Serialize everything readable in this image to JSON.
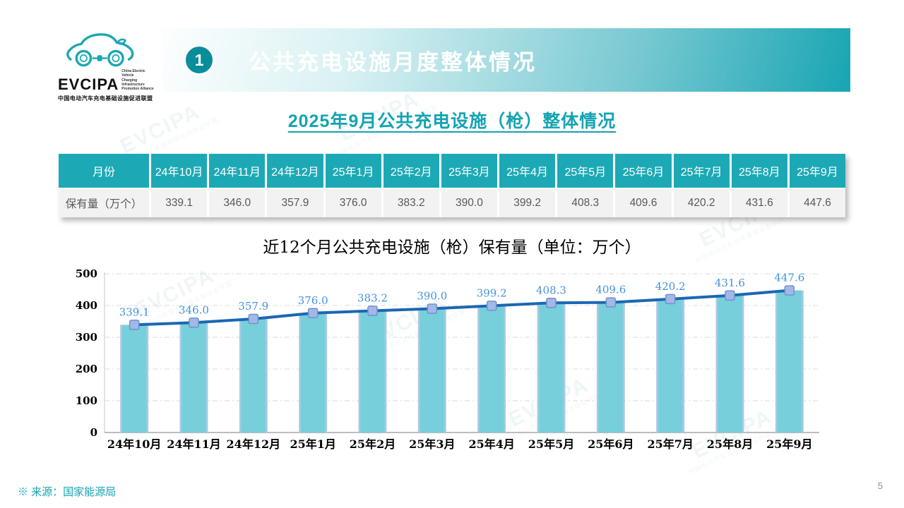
{
  "logo": {
    "name": "EVCIPA",
    "en": [
      "China Electric Vehicle",
      "Charging Infrastructure",
      "Promotion Alliance"
    ],
    "cn": "中国电动汽车充电基础设施促进联盟"
  },
  "banner": {
    "number": "1",
    "title": "公共充电设施月度整体情况"
  },
  "subtitle": "2025年9月公共充电设施（枪）整体情况",
  "table": {
    "corner_header": "月份",
    "row_label": "保有量（万个）",
    "months": [
      "24年10月",
      "24年11月",
      "24年12月",
      "25年1月",
      "25年2月",
      "25年3月",
      "25年4月",
      "25年5月",
      "25年6月",
      "25年7月",
      "25年8月",
      "25年9月"
    ],
    "values": [
      "339.1",
      "346.0",
      "357.9",
      "376.0",
      "383.2",
      "390.0",
      "399.2",
      "408.3",
      "409.6",
      "420.2",
      "431.6",
      "447.6"
    ]
  },
  "chart_data": {
    "type": "bar+line",
    "title": "近12个月公共充电设施（枪）保有量（单位：万个）",
    "categories": [
      "24年10月",
      "24年11月",
      "24年12月",
      "25年1月",
      "25年2月",
      "25年3月",
      "25年4月",
      "25年5月",
      "25年6月",
      "25年7月",
      "25年8月",
      "25年9月"
    ],
    "values": [
      339.1,
      346.0,
      357.9,
      376.0,
      383.2,
      390.0,
      399.2,
      408.3,
      409.6,
      420.2,
      431.6,
      447.6
    ],
    "ylim": [
      0,
      500
    ],
    "yticks": [
      0,
      100,
      200,
      300,
      400,
      500
    ],
    "grid": "dashed-horizontal",
    "legend": "none",
    "colors": {
      "bar": "#76CFDA",
      "bar_edge": "#BDC9EC",
      "line": "#1B67B3",
      "marker": "#A3B8E6",
      "marker_border": "#7292CC",
      "data_label": "#4492DC",
      "axis": "#A6A6A6",
      "gridline": "#D8D8D8"
    }
  },
  "footer": {
    "source": "※ 来源：国家能源局",
    "page": "5"
  },
  "watermark": {
    "line1": "EVCIPA",
    "line2": "中国电动汽车充电基础设施促进联盟"
  }
}
